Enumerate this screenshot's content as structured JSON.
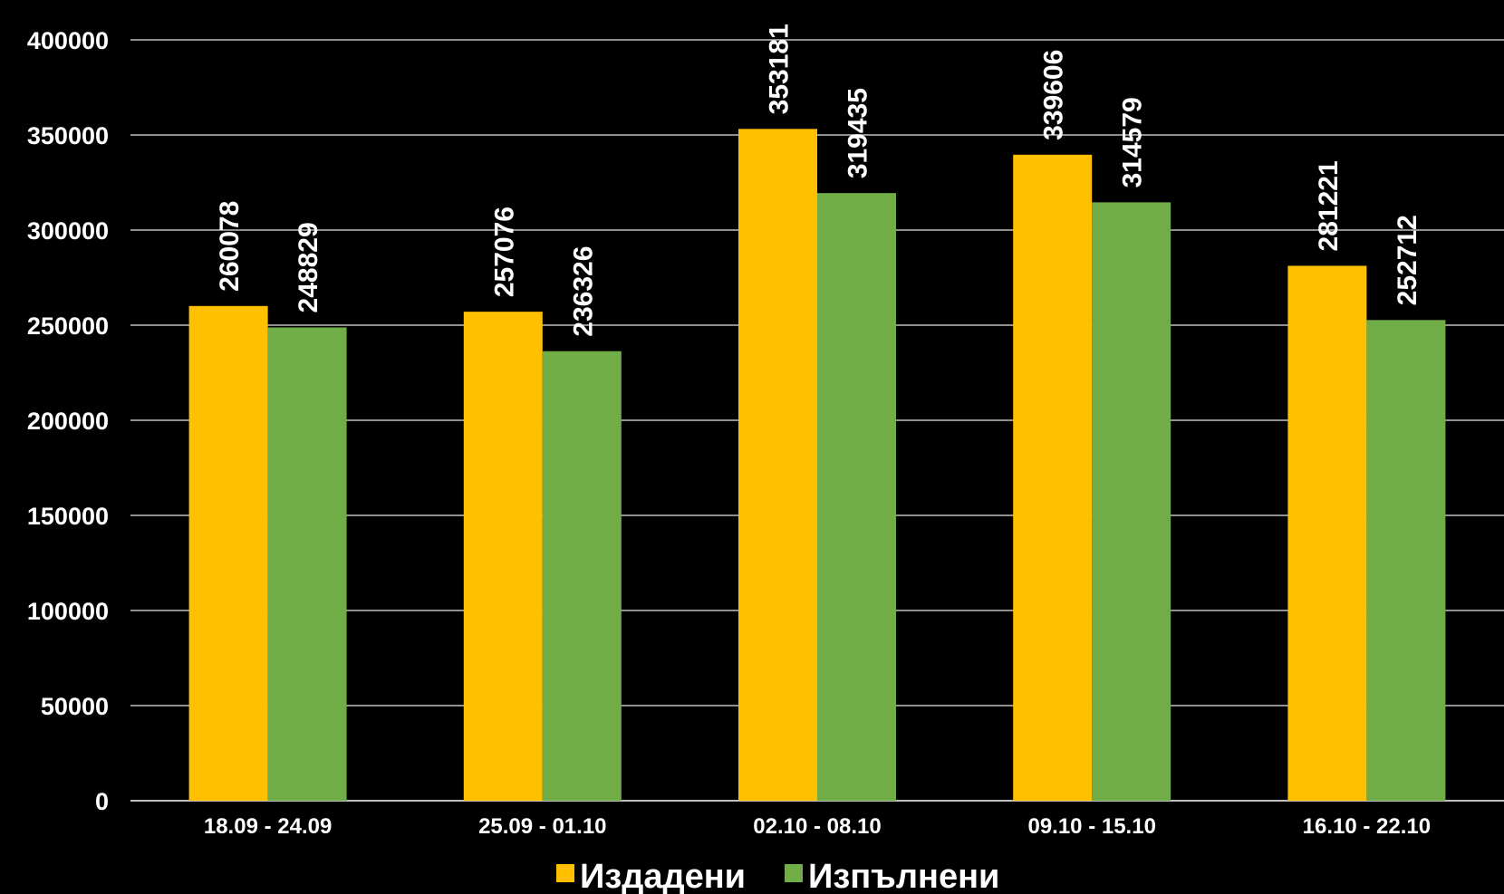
{
  "chart_data": {
    "type": "bar",
    "categories": [
      "18.09 - 24.09",
      "25.09 - 01.10",
      "02.10 - 08.10",
      "09.10 - 15.10",
      "16.10 - 22.10"
    ],
    "series": [
      {
        "name": "Издадени",
        "color": "#FFC000",
        "values": [
          260078,
          257076,
          353181,
          339606,
          281221
        ]
      },
      {
        "name": "Изпълнени",
        "color": "#70AD47",
        "values": [
          248829,
          236326,
          319435,
          314579,
          252712
        ]
      }
    ],
    "y_ticks": [
      "0",
      "50000",
      "100000",
      "150000",
      "200000",
      "250000",
      "300000",
      "350000",
      "400000"
    ],
    "ylim": [
      0,
      400000
    ],
    "grid": true,
    "legend_position": "bottom-center",
    "background_color": "#000000",
    "gridline_color": "#BFBFBF",
    "text_color": "#FFFFFF"
  }
}
